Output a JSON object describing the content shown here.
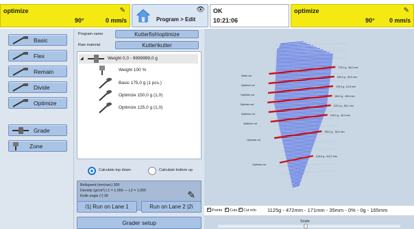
{
  "topbar": {
    "left_panel": {
      "title": "optimize",
      "angle": "90°",
      "speed": "0 mm/s"
    },
    "nav": {
      "label": "Program > Edit"
    },
    "status": {
      "state": "OK",
      "time": "10:21:06"
    },
    "right_panel": {
      "title": "optimize",
      "angle": "90°",
      "speed": "0 mm/s"
    }
  },
  "sidebar": {
    "items": [
      {
        "label": "Basic"
      },
      {
        "label": "Flex"
      },
      {
        "label": "Remain"
      },
      {
        "label": "Divide"
      },
      {
        "label": "Optimize"
      },
      {
        "label": "Grade"
      },
      {
        "label": "Zone"
      }
    ]
  },
  "program": {
    "name_label": "Program name",
    "name_value": "Kutterfish\\optimize",
    "raw_label": "Raw material",
    "raw_value": "Kutter\\kutter"
  },
  "tree": {
    "rows": [
      {
        "label": "Weight 0,0 - 9999999,0 g"
      },
      {
        "label": "Weight 100 %"
      },
      {
        "label": "Basic 175,0 g (1 pcs.)"
      },
      {
        "label": "Optimize 150,0 g (1,0)"
      },
      {
        "label": "Optimize 125,0 g (1,0)"
      }
    ]
  },
  "calc": {
    "top_down": "Calculate top down",
    "bottom_up": "Calculate bottom up"
  },
  "info": {
    "belt": "Beltspeed (mm/sec) 300",
    "density": "Density (g/cm³) L1 = 1,099 — L2 = 1,000",
    "knife": "Knife angle (°) 90"
  },
  "lanes": {
    "lane1": "/1|   Run on Lane 1",
    "lane2": "Run on Lane 2   |2\\"
  },
  "grader_setup": "Grader setup",
  "viz": {
    "checkboxes": [
      {
        "label": "Points",
        "checked": true
      },
      {
        "label": "Cuts",
        "checked": true
      },
      {
        "label": "Cut info",
        "checked": true
      }
    ],
    "summary": "1125g - 472mm - 171mm - 35mm - 0% - 0g - 165mm",
    "scale_label": "Scale",
    "left_cut_labels": [
      "Basic cut",
      "Optimize cut",
      "Optimize cut",
      "Optimize cut",
      "Optimize cut",
      "Optimize cut",
      "Optimize cut",
      "Optimize cut"
    ],
    "right_cut_labels": [
      "175,0 g - 86,0 mm",
      "150,0 g - 69,5 mm",
      "125,0 g - 61,8 mm",
      "150,0 g - 58,5 mm",
      "125,0 g - 56,1 mm",
      "150,0 g - 49,3 mm",
      "150,0 g - 58,4 mm",
      "125,0 g - 110,7 mm"
    ],
    "colors": {
      "fish": "#1a3ce8",
      "cut": "#c8141e",
      "background": "#c9d6e4"
    }
  }
}
